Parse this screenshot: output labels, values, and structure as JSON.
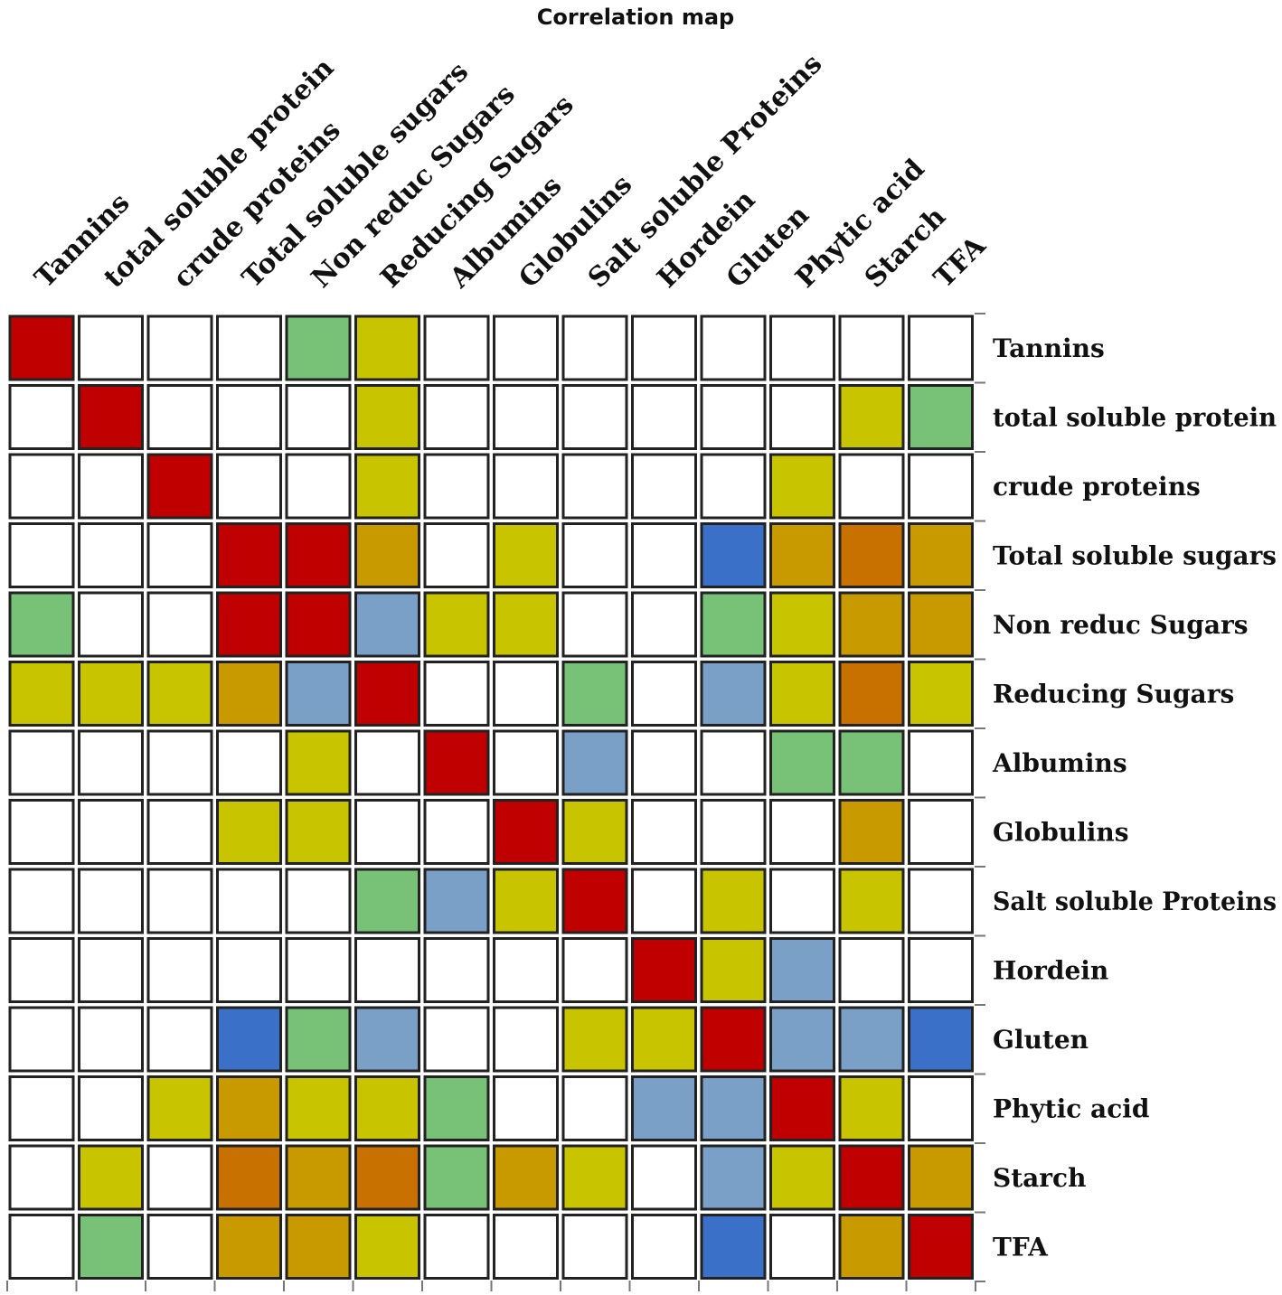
{
  "chart_data": {
    "type": "heatmap",
    "title": "Correlation map",
    "labels": [
      "Tannins",
      "total soluble protein",
      "crude proteins",
      "Total soluble sugars",
      "Non reduc Sugars",
      "Reducing Sugars",
      "Albumins",
      "Globulins",
      "Salt soluble Proteins",
      "Hordein",
      "Gluten",
      "Phytic acid",
      "Starch",
      "TFA"
    ],
    "color_key": {
      "W": "#ffffff",
      "R": "#c00000",
      "Y": "#c8c400",
      "G": "#78c278",
      "L": "#7ba0c8",
      "B": "#3a70c8",
      "O": "#c89a00",
      "D": "#c87000"
    },
    "matrix": [
      [
        "R",
        "W",
        "W",
        "W",
        "G",
        "Y",
        "W",
        "W",
        "W",
        "W",
        "W",
        "W",
        "W",
        "W"
      ],
      [
        "W",
        "R",
        "W",
        "W",
        "W",
        "Y",
        "W",
        "W",
        "W",
        "W",
        "W",
        "W",
        "Y",
        "G"
      ],
      [
        "W",
        "W",
        "R",
        "W",
        "W",
        "Y",
        "W",
        "W",
        "W",
        "W",
        "W",
        "Y",
        "W",
        "W"
      ],
      [
        "W",
        "W",
        "W",
        "R",
        "R",
        "O",
        "W",
        "Y",
        "W",
        "W",
        "B",
        "O",
        "D",
        "O"
      ],
      [
        "G",
        "W",
        "W",
        "R",
        "R",
        "L",
        "Y",
        "Y",
        "W",
        "W",
        "G",
        "Y",
        "O",
        "O"
      ],
      [
        "Y",
        "Y",
        "Y",
        "O",
        "L",
        "R",
        "W",
        "W",
        "G",
        "W",
        "L",
        "Y",
        "D",
        "Y"
      ],
      [
        "W",
        "W",
        "W",
        "W",
        "Y",
        "W",
        "R",
        "W",
        "L",
        "W",
        "W",
        "G",
        "G",
        "W"
      ],
      [
        "W",
        "W",
        "W",
        "Y",
        "Y",
        "W",
        "W",
        "R",
        "Y",
        "W",
        "W",
        "W",
        "O",
        "W"
      ],
      [
        "W",
        "W",
        "W",
        "W",
        "W",
        "G",
        "L",
        "Y",
        "R",
        "W",
        "Y",
        "W",
        "Y",
        "W"
      ],
      [
        "W",
        "W",
        "W",
        "W",
        "W",
        "W",
        "W",
        "W",
        "W",
        "R",
        "Y",
        "L",
        "W",
        "W"
      ],
      [
        "W",
        "W",
        "W",
        "B",
        "G",
        "L",
        "W",
        "W",
        "Y",
        "Y",
        "R",
        "L",
        "L",
        "B"
      ],
      [
        "W",
        "W",
        "Y",
        "O",
        "Y",
        "Y",
        "G",
        "W",
        "W",
        "L",
        "L",
        "R",
        "Y",
        "W"
      ],
      [
        "W",
        "Y",
        "W",
        "D",
        "O",
        "D",
        "G",
        "O",
        "Y",
        "W",
        "L",
        "Y",
        "R",
        "O"
      ],
      [
        "W",
        "G",
        "W",
        "O",
        "O",
        "Y",
        "W",
        "W",
        "W",
        "W",
        "B",
        "W",
        "O",
        "R"
      ]
    ]
  }
}
